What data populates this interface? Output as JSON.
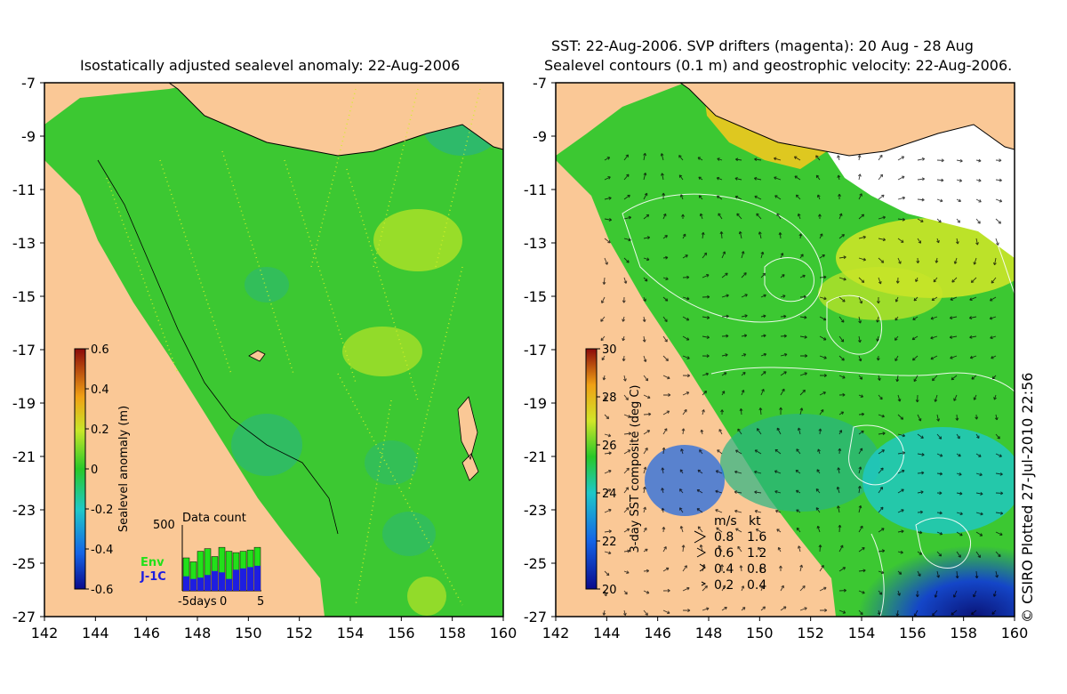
{
  "left_panel": {
    "title": "Isostatically adjusted sealevel anomaly: 22-Aug-2006",
    "colorbar": {
      "label": "Sealevel anomaly (m)",
      "ticks": [
        "0.6",
        "0.4",
        "0.2",
        "0",
        "-0.2",
        "-0.4",
        "-0.6"
      ]
    },
    "data_count": {
      "title": "Data count",
      "ymax_label": "500",
      "x_labels": [
        "-5days",
        "0",
        "5"
      ],
      "legend": [
        {
          "name": "Env",
          "color": "#22e01a"
        },
        {
          "name": "J-1C",
          "color": "#1e1ee0"
        }
      ],
      "env_counts": [
        250,
        220,
        300,
        320,
        260,
        330,
        300,
        290,
        300,
        310,
        330
      ],
      "j1c_counts": [
        110,
        90,
        100,
        120,
        150,
        140,
        90,
        160,
        170,
        180,
        190
      ],
      "ymax": 500
    }
  },
  "right_panel": {
    "title_line1": "SST: 22-Aug-2006. SVP drifters (magenta): 20 Aug - 28 Aug",
    "title_line2": "Sealevel contours (0.1 m) and geostrophic velocity: 22-Aug-2006.",
    "colorbar": {
      "label": "3-day SST composite (deg C)",
      "ticks": [
        "30",
        "28",
        "26",
        "24",
        "22",
        "20"
      ]
    },
    "velocity_legend": {
      "header_ms": "m/s",
      "header_kt": "kt",
      "rows": [
        {
          "ms": "0.8",
          "kt": "1.6"
        },
        {
          "ms": "0.6",
          "kt": "1.2"
        },
        {
          "ms": "0.4",
          "kt": "0.8"
        },
        {
          "ms": "0.2",
          "kt": "0.4"
        }
      ]
    }
  },
  "axes": {
    "lon_ticks": [
      "142",
      "144",
      "146",
      "148",
      "150",
      "152",
      "154",
      "156",
      "158",
      "160"
    ],
    "lat_ticks": [
      "-7",
      "-9",
      "-11",
      "-13",
      "-15",
      "-17",
      "-19",
      "-21",
      "-23",
      "-25",
      "-27"
    ],
    "lon_range": [
      142,
      160
    ],
    "lat_range": [
      -27,
      -7
    ]
  },
  "credit": "© CSIRO Plotted 27-Jul-2010 22:56",
  "colors": {
    "land": "#fac896",
    "ocean_green": "#3cc832",
    "ocean_teal": "#28b482",
    "ocean_yellow": "#c8e628",
    "sst_blue": "#1446c8",
    "sst_dark": "#0a1478"
  }
}
